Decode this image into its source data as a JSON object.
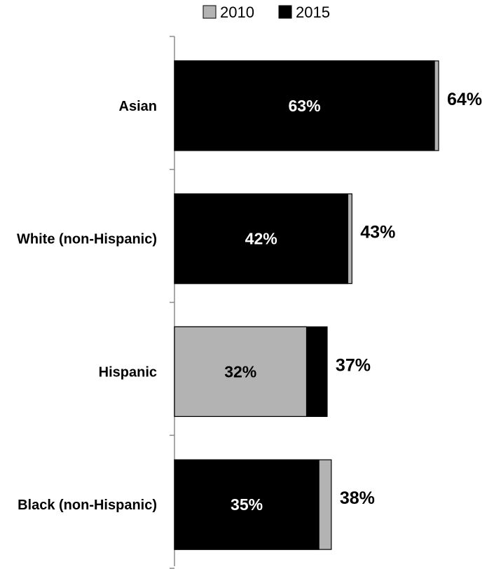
{
  "chart_data": {
    "type": "bar",
    "orientation": "horizontal",
    "layout": "overlapped",
    "categories": [
      "Asian",
      "White (non-Hispanic)",
      "Hispanic",
      "Black (non-Hispanic)"
    ],
    "series": [
      {
        "name": "2010",
        "color": "#b3b3b3",
        "values": [
          64,
          43,
          32,
          38
        ]
      },
      {
        "name": "2015",
        "color": "#000000",
        "values": [
          63,
          42,
          37,
          35
        ]
      }
    ],
    "inner_labels": [
      "63%",
      "42%",
      "32%",
      "35%"
    ],
    "outer_labels": [
      "64%",
      "43%",
      "37%",
      "38%"
    ],
    "legend": {
      "position": "top",
      "items": [
        "2010",
        "2015"
      ]
    },
    "title": "",
    "xlabel": "",
    "ylabel": "",
    "grid": false
  }
}
